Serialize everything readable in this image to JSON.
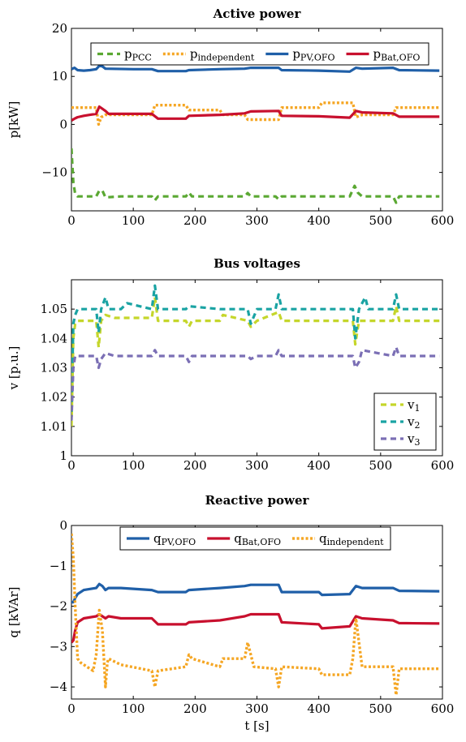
{
  "chart_data": [
    {
      "type": "line",
      "title": "Active power",
      "xlabel": "",
      "ylabel": "p[kW]",
      "xlim": [
        0,
        600
      ],
      "ylim": [
        -18,
        20
      ],
      "xticks": [
        "0",
        "100",
        "200",
        "300",
        "400",
        "500",
        "600"
      ],
      "yticks": [
        "−10",
        "0",
        "10",
        "20"
      ],
      "ytick_values": [
        -10,
        0,
        10,
        20
      ],
      "legend_position": "top",
      "series": [
        {
          "name": "p",
          "sub": "PCC",
          "color": "#5aa832",
          "dash": "dashed",
          "x": [
            0,
            3,
            6,
            10,
            20,
            40,
            45,
            50,
            55,
            80,
            130,
            135,
            140,
            185,
            190,
            195,
            280,
            285,
            290,
            330,
            335,
            340,
            400,
            450,
            458,
            463,
            470,
            520,
            525,
            530,
            595
          ],
          "y": [
            -5,
            -12,
            -14.5,
            -15,
            -15,
            -15,
            -13.8,
            -13.8,
            -15.2,
            -15,
            -15,
            -15.8,
            -15,
            -15,
            -14.2,
            -15,
            -15,
            -14.3,
            -15,
            -15,
            -15.6,
            -15,
            -15,
            -15,
            -12.8,
            -14.2,
            -15,
            -15,
            -16.3,
            -15,
            -15
          ]
        },
        {
          "name": "p",
          "sub": "independent",
          "color": "#f5a623",
          "dash": "dotted",
          "x": [
            0,
            40,
            44,
            48,
            55,
            90,
            130,
            135,
            185,
            190,
            240,
            245,
            280,
            285,
            335,
            340,
            400,
            405,
            455,
            460,
            470,
            520,
            525,
            595
          ],
          "y": [
            3.5,
            3.5,
            0,
            1.5,
            2,
            2,
            2,
            4,
            4,
            3,
            3,
            2,
            2,
            1,
            1,
            3.5,
            3.5,
            4.5,
            4.5,
            1.5,
            2,
            2,
            3.5,
            3.5
          ]
        },
        {
          "name": "p",
          "sub": "PV,OFO",
          "color": "#1f5fa8",
          "dash": "solid",
          "x": [
            0,
            5,
            10,
            20,
            30,
            40,
            45,
            50,
            55,
            100,
            130,
            140,
            185,
            190,
            240,
            280,
            290,
            335,
            340,
            400,
            450,
            460,
            470,
            520,
            530,
            595
          ],
          "y": [
            11.5,
            11.8,
            11.3,
            11.2,
            11.3,
            11.5,
            12.2,
            12.1,
            11.6,
            11.5,
            11.5,
            11.1,
            11.1,
            11.3,
            11.5,
            11.6,
            11.8,
            11.8,
            11.3,
            11.2,
            11,
            11.8,
            11.6,
            11.8,
            11.3,
            11.2
          ]
        },
        {
          "name": "p",
          "sub": "Bat,OFO",
          "color": "#c8102e",
          "dash": "solid",
          "x": [
            0,
            5,
            10,
            20,
            30,
            40,
            45,
            55,
            60,
            80,
            130,
            140,
            185,
            190,
            240,
            280,
            290,
            335,
            340,
            400,
            450,
            460,
            470,
            520,
            530,
            595
          ],
          "y": [
            0.8,
            1.2,
            1.5,
            1.8,
            2,
            2.2,
            3.7,
            2.8,
            2.2,
            2.2,
            2.2,
            1.2,
            1.2,
            1.8,
            2,
            2.3,
            2.7,
            2.8,
            1.8,
            1.7,
            1.4,
            2.8,
            2.5,
            2.3,
            1.6,
            1.6
          ]
        }
      ]
    },
    {
      "type": "line",
      "title": "Bus voltages",
      "xlabel": "",
      "ylabel": "v [p.u.]",
      "xlim": [
        0,
        600
      ],
      "ylim": [
        1,
        1.06
      ],
      "xticks": [
        "0",
        "100",
        "200",
        "300",
        "400",
        "500",
        "600"
      ],
      "yticks": [
        "1",
        "1.01",
        "1.02",
        "1.03",
        "1.04",
        "1.05"
      ],
      "ytick_values": [
        1,
        1.01,
        1.02,
        1.03,
        1.04,
        1.05
      ],
      "legend_position": "bottom-right",
      "series": [
        {
          "name": "v",
          "sub": "1",
          "color": "#c5d62b",
          "dash": "dashed",
          "x": [
            0,
            3,
            6,
            10,
            40,
            44,
            48,
            55,
            70,
            130,
            135,
            140,
            185,
            190,
            195,
            240,
            245,
            285,
            290,
            300,
            335,
            340,
            400,
            455,
            459,
            465,
            520,
            525,
            530,
            595
          ],
          "y": [
            1.01,
            1.04,
            1.045,
            1.046,
            1.046,
            1.037,
            1.046,
            1.048,
            1.047,
            1.047,
            1.054,
            1.046,
            1.046,
            1.044,
            1.046,
            1.046,
            1.048,
            1.046,
            1.044,
            1.046,
            1.049,
            1.046,
            1.046,
            1.046,
            1.038,
            1.046,
            1.046,
            1.051,
            1.046,
            1.046
          ]
        },
        {
          "name": "v",
          "sub": "2",
          "color": "#1aa3a3",
          "dash": "dashed",
          "x": [
            0,
            3,
            6,
            10,
            40,
            44,
            48,
            55,
            60,
            80,
            90,
            130,
            135,
            140,
            185,
            190,
            240,
            285,
            290,
            300,
            330,
            335,
            340,
            400,
            455,
            459,
            465,
            475,
            480,
            520,
            525,
            530,
            595
          ],
          "y": [
            1.015,
            1.045,
            1.048,
            1.05,
            1.05,
            1.042,
            1.05,
            1.054,
            1.05,
            1.05,
            1.052,
            1.05,
            1.058,
            1.05,
            1.05,
            1.051,
            1.05,
            1.05,
            1.045,
            1.05,
            1.05,
            1.055,
            1.05,
            1.05,
            1.05,
            1.04,
            1.05,
            1.054,
            1.05,
            1.05,
            1.055,
            1.05,
            1.05
          ]
        },
        {
          "name": "v",
          "sub": "3",
          "color": "#7b6fb5",
          "dash": "dashed",
          "x": [
            0,
            3,
            6,
            10,
            40,
            44,
            48,
            55,
            70,
            130,
            135,
            140,
            185,
            190,
            195,
            240,
            285,
            290,
            300,
            330,
            335,
            340,
            400,
            455,
            459,
            465,
            470,
            520,
            525,
            530,
            595
          ],
          "y": [
            1.012,
            1.03,
            1.034,
            1.034,
            1.034,
            1.03,
            1.033,
            1.035,
            1.034,
            1.034,
            1.036,
            1.034,
            1.034,
            1.032,
            1.034,
            1.034,
            1.034,
            1.033,
            1.034,
            1.034,
            1.036,
            1.034,
            1.034,
            1.034,
            1.03,
            1.032,
            1.036,
            1.034,
            1.037,
            1.034,
            1.034
          ]
        }
      ]
    },
    {
      "type": "line",
      "title": "Reactive power",
      "xlabel": "t [s]",
      "ylabel": "q [kVAr]",
      "xlim": [
        0,
        600
      ],
      "ylim": [
        -4.3,
        0
      ],
      "xticks": [
        "0",
        "100",
        "200",
        "300",
        "400",
        "500",
        "600"
      ],
      "yticks": [
        "−4",
        "−3",
        "−2",
        "−1",
        "0"
      ],
      "ytick_values": [
        -4,
        -3,
        -2,
        -1,
        0
      ],
      "legend_position": "top",
      "series": [
        {
          "name": "q",
          "sub": "PV,OFO",
          "color": "#1f5fa8",
          "dash": "solid",
          "x": [
            0,
            3,
            6,
            10,
            20,
            40,
            45,
            50,
            55,
            60,
            80,
            130,
            140,
            185,
            190,
            240,
            280,
            290,
            335,
            340,
            400,
            405,
            450,
            460,
            470,
            520,
            530,
            595
          ],
          "y": [
            -1.9,
            -1.9,
            -1.8,
            -1.7,
            -1.6,
            -1.55,
            -1.45,
            -1.5,
            -1.6,
            -1.55,
            -1.55,
            -1.6,
            -1.65,
            -1.65,
            -1.6,
            -1.55,
            -1.5,
            -1.47,
            -1.47,
            -1.65,
            -1.65,
            -1.72,
            -1.7,
            -1.5,
            -1.55,
            -1.55,
            -1.62,
            -1.63
          ]
        },
        {
          "name": "q",
          "sub": "Bat,OFO",
          "color": "#c8102e",
          "dash": "solid",
          "x": [
            0,
            3,
            6,
            10,
            20,
            40,
            45,
            50,
            55,
            60,
            80,
            130,
            140,
            185,
            190,
            240,
            280,
            290,
            335,
            340,
            400,
            405,
            450,
            460,
            470,
            520,
            530,
            595
          ],
          "y": [
            -2.9,
            -2.85,
            -2.6,
            -2.4,
            -2.3,
            -2.25,
            -2.2,
            -2.25,
            -2.3,
            -2.25,
            -2.3,
            -2.3,
            -2.45,
            -2.45,
            -2.4,
            -2.35,
            -2.25,
            -2.2,
            -2.2,
            -2.4,
            -2.45,
            -2.55,
            -2.5,
            -2.25,
            -2.3,
            -2.35,
            -2.42,
            -2.43
          ]
        },
        {
          "name": "q",
          "sub": "independent",
          "color": "#f5a623",
          "dash": "dotted",
          "x": [
            0,
            3,
            6,
            10,
            15,
            25,
            35,
            40,
            45,
            50,
            55,
            58,
            60,
            80,
            130,
            135,
            140,
            185,
            190,
            195,
            240,
            245,
            280,
            285,
            290,
            295,
            330,
            335,
            340,
            400,
            405,
            450,
            455,
            460,
            465,
            470,
            520,
            525,
            530,
            595
          ],
          "y": [
            -0.2,
            -0.8,
            -2,
            -3.3,
            -3.4,
            -3.5,
            -3.6,
            -3.2,
            -2.1,
            -2.6,
            -4.0,
            -3.4,
            -3.3,
            -3.45,
            -3.6,
            -4.0,
            -3.6,
            -3.5,
            -3.2,
            -3.3,
            -3.5,
            -3.3,
            -3.3,
            -2.9,
            -3.2,
            -3.5,
            -3.55,
            -4.0,
            -3.5,
            -3.55,
            -3.7,
            -3.7,
            -3.3,
            -2.3,
            -2.9,
            -3.5,
            -3.5,
            -4.2,
            -3.55,
            -3.55
          ]
        }
      ]
    }
  ]
}
